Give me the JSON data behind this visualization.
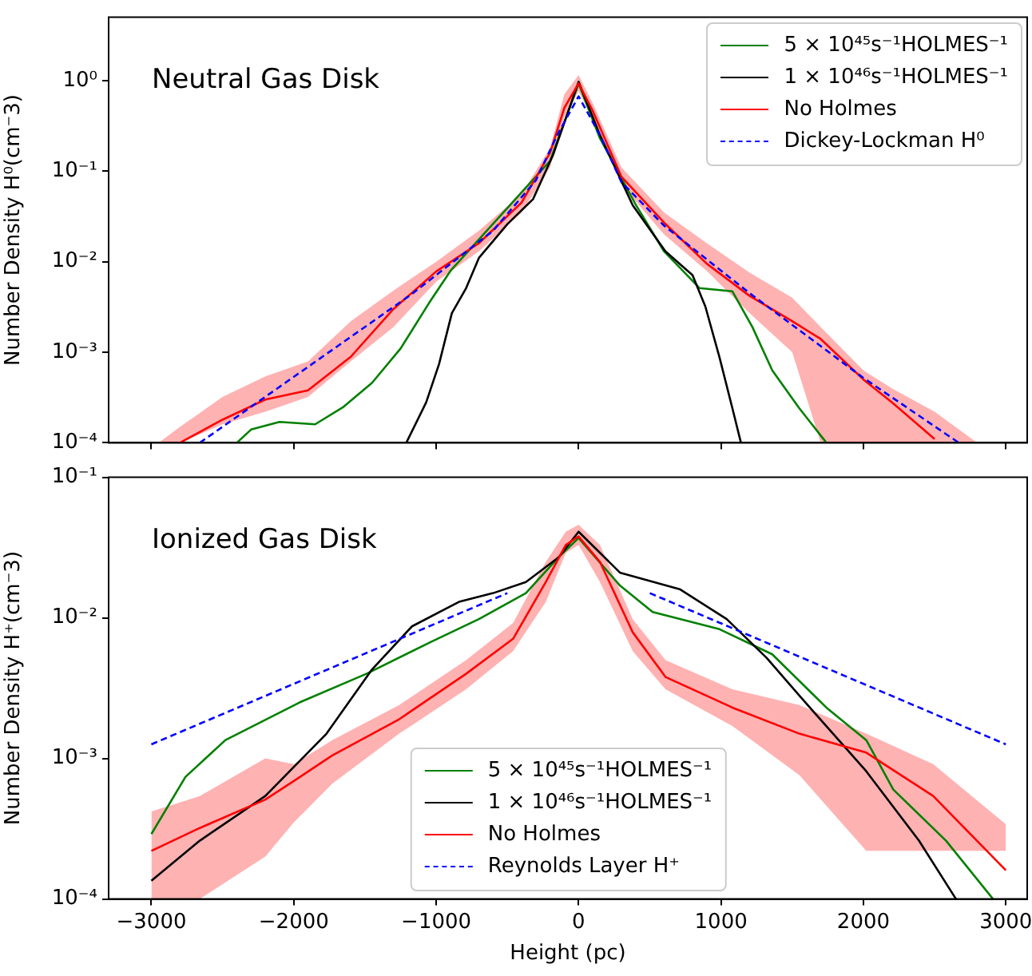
{
  "chart_data": [
    {
      "type": "line",
      "annotations": [
        "Neutral Gas Disk"
      ],
      "ylabel": "Number Density H⁰(cm⁻3)",
      "log": "y",
      "marker": "none",
      "legend": "top right",
      "tick_labels": "y",
      "xlim": [
        -3300,
        3150
      ],
      "xticks": [
        {
          "value": -3000,
          "label": null
        },
        {
          "value": -2000,
          "label": null
        },
        {
          "value": -1000,
          "label": null
        },
        {
          "value": 0,
          "label": null
        },
        {
          "value": 1000,
          "label": null
        },
        {
          "value": 2000,
          "label": null
        },
        {
          "value": 3000,
          "label": null
        }
      ],
      "ylim": [
        0.0001,
        5
      ],
      "yticks": [
        {
          "value": 0.0001,
          "label": "10⁻⁴"
        },
        {
          "value": 0.001,
          "label": "10⁻³"
        },
        {
          "value": 0.01,
          "label": "10⁻²"
        },
        {
          "value": 0.1,
          "label": "10⁻¹"
        },
        {
          "value": 1,
          "label": "10⁰"
        }
      ],
      "series": [
        {
          "name": "5 × 10⁴⁵s⁻¹HOLMES⁻¹",
          "color": "#008000",
          "x": [
            -2400,
            -2300,
            -2100,
            -1850,
            -1650,
            -1450,
            -1250,
            -1050,
            -900,
            -200,
            0,
            150,
            400,
            600,
            850,
            1080,
            1220,
            1360,
            1550,
            1740
          ],
          "values": [
            0.0001,
            0.00014,
            0.00017,
            0.00016,
            0.00025,
            0.00046,
            0.0011,
            0.0035,
            0.0079,
            0.13,
            0.93,
            0.23,
            0.043,
            0.013,
            0.0051,
            0.0047,
            0.0019,
            0.00063,
            0.00024,
            0.0001
          ]
        },
        {
          "name": "1 × 10⁴⁶s⁻¹HOLMES⁻¹",
          "color": "#000000",
          "x": [
            -1210,
            -1070,
            -980,
            -890,
            -790,
            -700,
            -500,
            -320,
            -180,
            0,
            150,
            380,
            610,
            800,
            890,
            990,
            1080,
            1140
          ],
          "values": [
            0.0001,
            0.00028,
            0.00074,
            0.0027,
            0.0051,
            0.011,
            0.026,
            0.049,
            0.15,
            0.97,
            0.25,
            0.042,
            0.013,
            0.0071,
            0.0032,
            0.00087,
            0.00024,
            0.0001
          ]
        },
        {
          "name": "No Holmes",
          "color": "#ff0000",
          "x": [
            -2950,
            -2800,
            -2500,
            -2200,
            -1900,
            -1600,
            -1300,
            -1000,
            -700,
            -400,
            -200,
            -100,
            0,
            100,
            300,
            600,
            900,
            1200,
            1500,
            1700,
            2000,
            2200,
            2500,
            2800
          ],
          "values": [
            null,
            0.0001,
            0.00018,
            0.0003,
            0.00038,
            0.00089,
            0.003,
            0.0078,
            0.016,
            0.045,
            0.16,
            0.5,
            0.93,
            0.46,
            0.087,
            0.027,
            0.0095,
            0.0042,
            0.0022,
            0.0014,
            0.0005,
            0.00028,
            0.00011,
            null
          ],
          "upper": [
            0.0001,
            0.00015,
            0.00032,
            0.00054,
            0.00079,
            0.0022,
            0.0048,
            0.01,
            0.022,
            0.056,
            0.18,
            0.71,
            1.15,
            0.56,
            0.11,
            0.035,
            0.016,
            0.0076,
            0.004,
            0.0019,
            0.00063,
            0.0004,
            0.00022,
            0.0001
          ],
          "lower": [
            0.0001,
            0.0001,
            0.00016,
            0.00022,
            0.00032,
            0.00079,
            0.0019,
            0.006,
            0.013,
            0.035,
            0.11,
            0.4,
            0.76,
            0.38,
            0.071,
            0.02,
            0.0079,
            0.0027,
            0.001,
            0.0001,
            0.0001,
            0.0001,
            0.0001,
            0.0001
          ]
        },
        {
          "name": "Dickey-Lockman H⁰",
          "color": "#0000ff",
          "line_style": "dashed",
          "x": [
            -2660,
            -1170,
            -600,
            -300,
            -150,
            0,
            150,
            300,
            600,
            1200,
            2000,
            2670
          ],
          "values": [
            0.0001,
            0.0044,
            0.022,
            0.079,
            0.25,
            0.67,
            0.25,
            0.076,
            0.025,
            0.0045,
            0.00052,
            0.0001
          ]
        }
      ]
    },
    {
      "type": "line",
      "annotations": [
        "Ionized Gas Disk"
      ],
      "xlabel": "Height (pc)",
      "ylabel": "Number Density H⁺(cm⁻3)",
      "log": "y",
      "marker": "none",
      "legend": "bottom",
      "xlim": [
        -3300,
        3150
      ],
      "xticks": [
        {
          "value": -3000,
          "label": "−3000"
        },
        {
          "value": -2000,
          "label": "−2000"
        },
        {
          "value": -1000,
          "label": "−1000"
        },
        0,
        1000,
        2000,
        3000
      ],
      "ylim": [
        0.0001,
        0.1
      ],
      "yticks": [
        {
          "value": 0.0001,
          "label": "10⁻⁴"
        },
        {
          "value": 0.001,
          "label": "10⁻³"
        },
        {
          "value": 0.01,
          "label": "10⁻²"
        },
        {
          "value": 0.1,
          "label": "10⁻¹"
        }
      ],
      "series": [
        {
          "name": "5 × 10⁴⁵s⁻¹HOLMES⁻¹",
          "color": "#008000",
          "x": [
            -3000,
            -2760,
            -2480,
            -1960,
            -1490,
            -1030,
            -700,
            -370,
            -140,
            0,
            290,
            520,
            990,
            1360,
            1740,
            2020,
            2210,
            2580,
            2910
          ],
          "values": [
            0.00029,
            0.00074,
            0.00135,
            0.0025,
            0.004,
            0.0068,
            0.0098,
            0.015,
            0.027,
            0.037,
            0.017,
            0.011,
            0.0083,
            0.0055,
            0.0023,
            0.00135,
            0.0006,
            0.00026,
            0.0001
          ]
        },
        {
          "name": "1 × 10⁴⁶s⁻¹HOLMES⁻¹",
          "color": "#000000",
          "x": [
            -3000,
            -2660,
            -2200,
            -1770,
            -1450,
            -1170,
            -840,
            -600,
            -370,
            -140,
            0,
            290,
            710,
            1040,
            1320,
            1550,
            2020,
            2390,
            2650
          ],
          "values": [
            0.000135,
            0.00026,
            0.00054,
            0.0015,
            0.0043,
            0.0087,
            0.013,
            0.015,
            0.018,
            0.027,
            0.041,
            0.021,
            0.016,
            0.0098,
            0.0052,
            0.0028,
            0.00081,
            0.00026,
            0.0001
          ]
        },
        {
          "name": "No Holmes",
          "color": "#ff0000",
          "x": [
            -3000,
            -2660,
            -2200,
            -2000,
            -1730,
            -1260,
            -790,
            -460,
            -230,
            -90,
            0,
            150,
            380,
            610,
            1080,
            1550,
            2020,
            2490,
            3000
          ],
          "values": [
            0.00022,
            0.00032,
            0.00051,
            0.00069,
            0.00105,
            0.0019,
            0.004,
            0.0071,
            0.018,
            0.033,
            0.038,
            0.025,
            0.0079,
            0.0038,
            0.0023,
            0.0015,
            0.0011,
            0.00054,
            0.00016
          ],
          "upper": [
            0.00042,
            0.00054,
            0.001,
            0.00091,
            0.00135,
            0.0024,
            0.005,
            0.0092,
            0.025,
            0.041,
            0.046,
            0.033,
            0.0098,
            0.005,
            0.0031,
            0.0024,
            0.0015,
            0.00091,
            0.00034
          ],
          "lower": [
            0.0001,
            0.0001,
            0.0002,
            0.00035,
            0.00066,
            0.0015,
            0.0031,
            0.0058,
            0.013,
            0.029,
            0.033,
            0.018,
            0.0058,
            0.0031,
            0.0017,
            0.00076,
            0.00022,
            0.00022,
            0.00022
          ]
        },
        {
          "name": "Reynolds Layer H⁺",
          "color": "#0000ff",
          "line_style": "dashed",
          "x": [
            -3000,
            -500,
            0,
            500,
            3000
          ],
          "values": [
            0.00126,
            0.015,
            null,
            0.015,
            0.00126
          ]
        }
      ]
    }
  ]
}
